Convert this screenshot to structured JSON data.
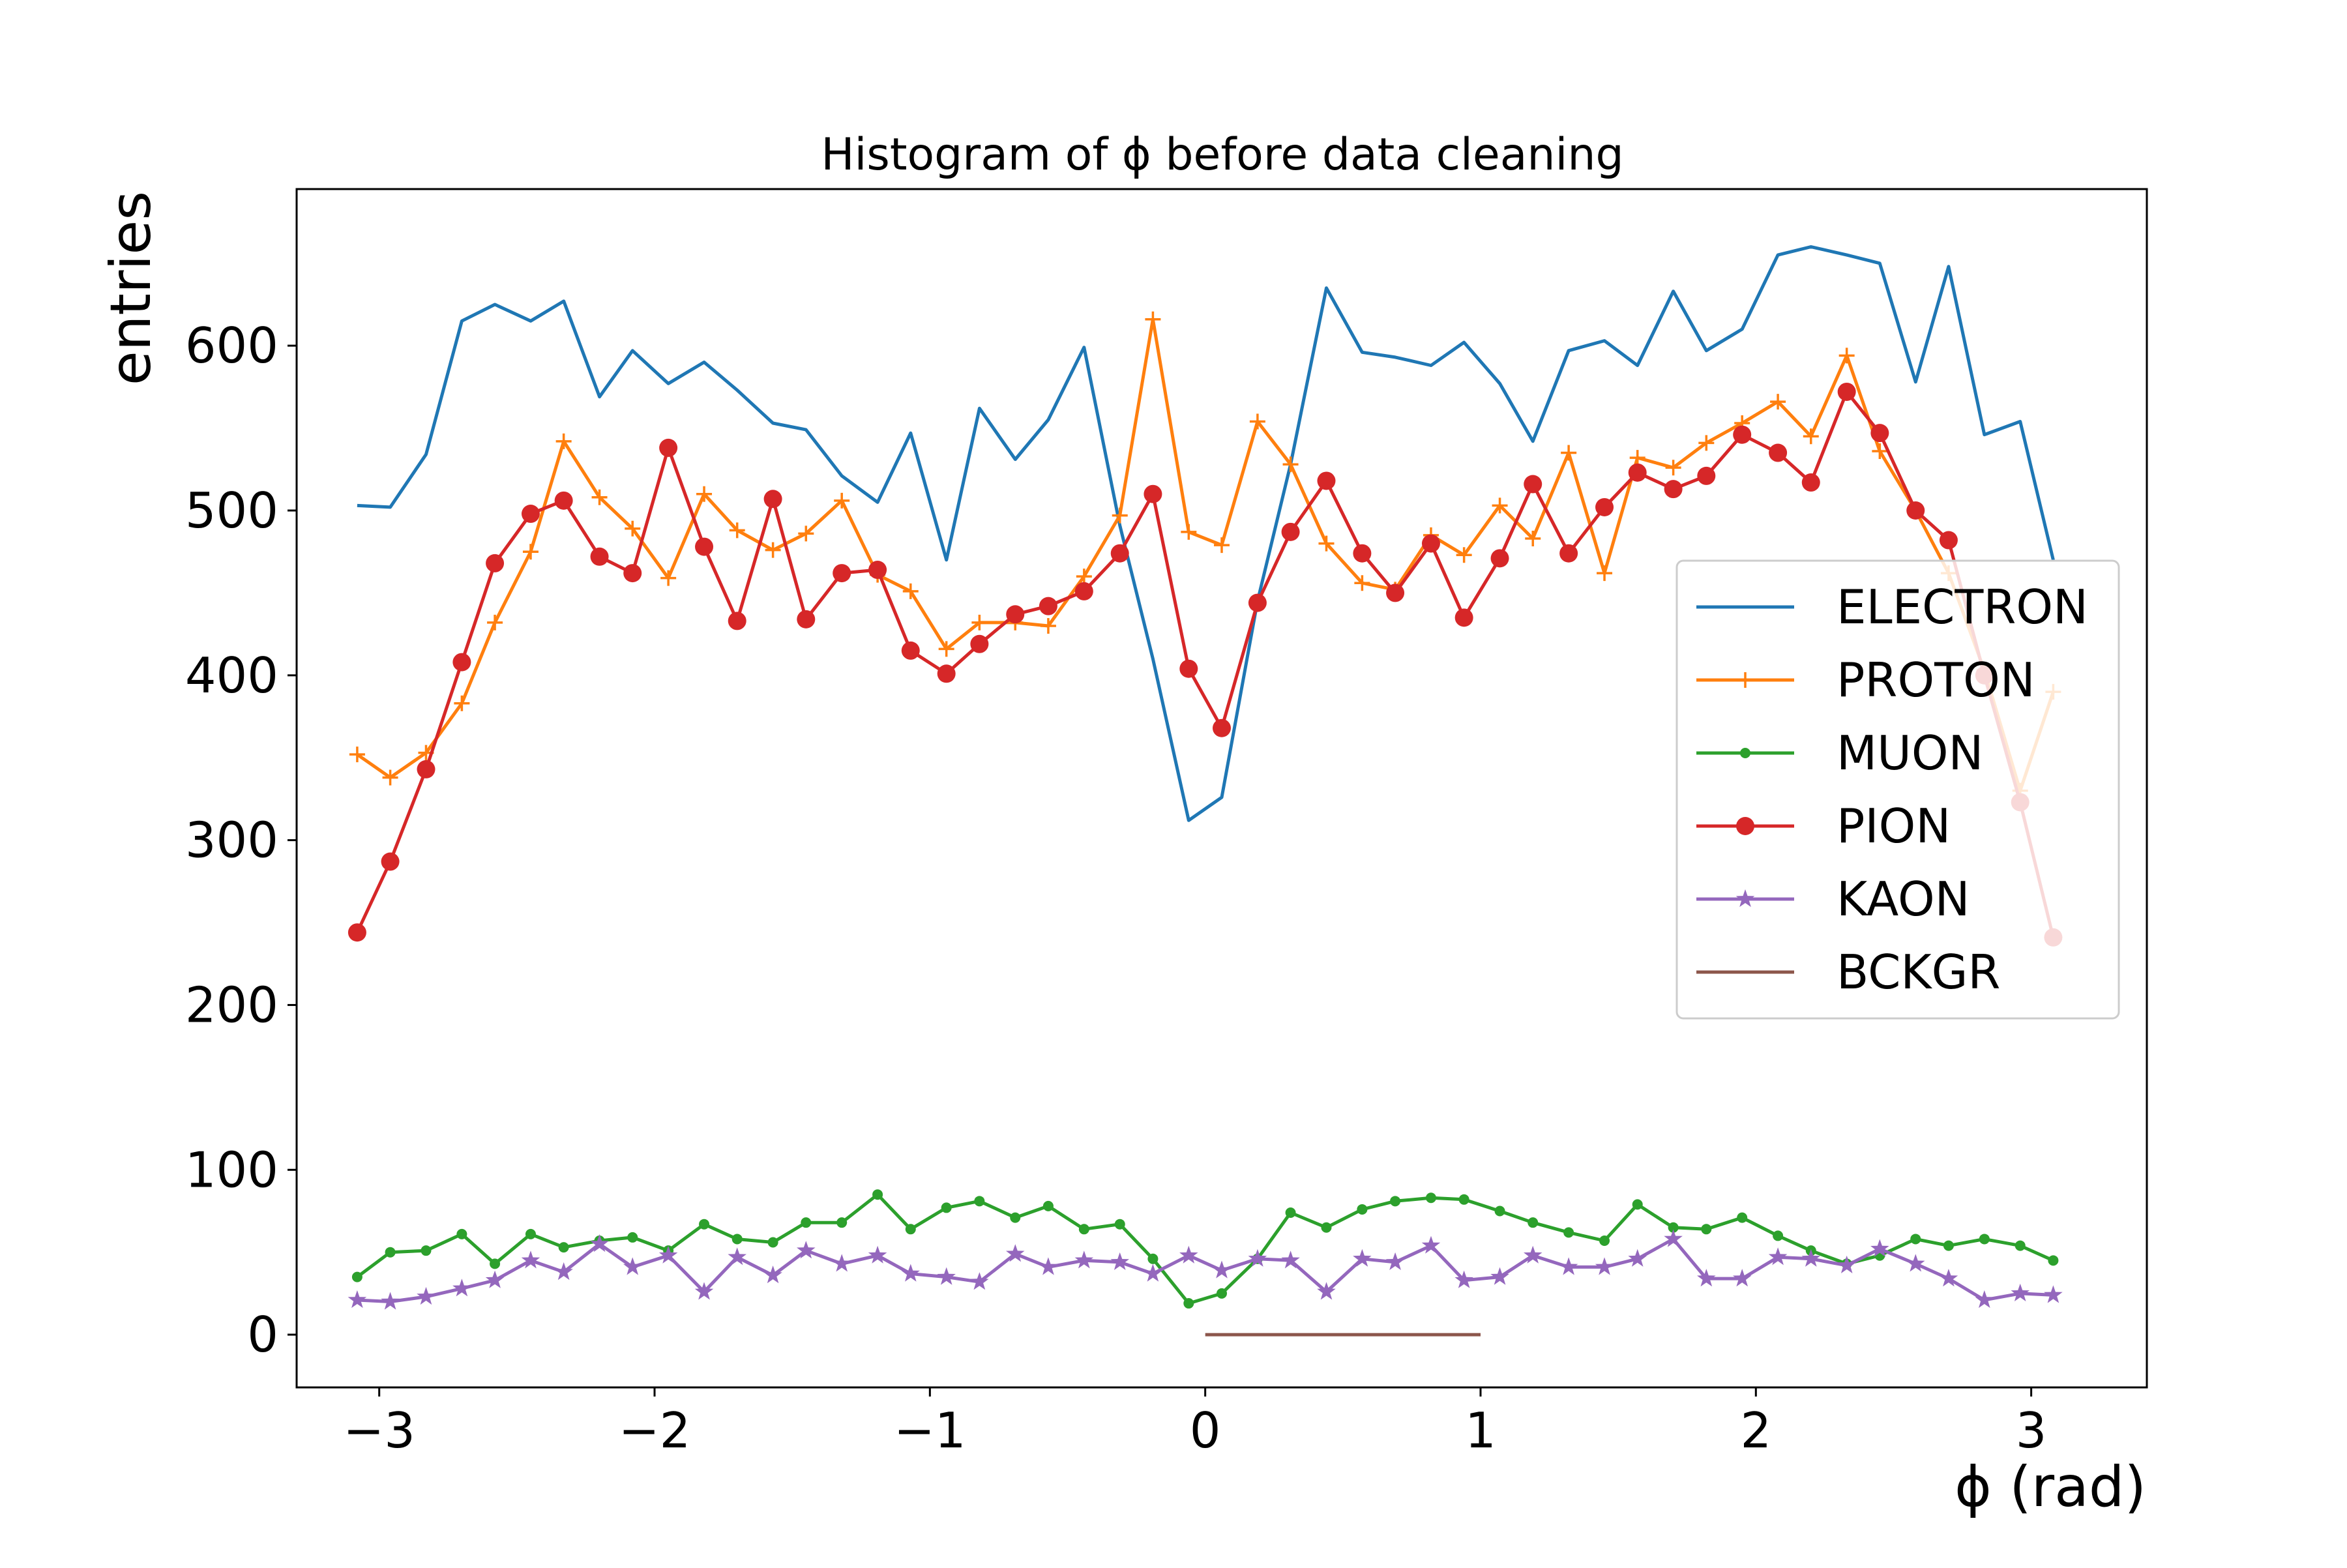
{
  "chart_data": {
    "type": "line",
    "title": "Histogram of ϕ before data cleaning",
    "xlabel": "ϕ (rad)",
    "ylabel": "entries",
    "xlim": [
      -3.3,
      3.42
    ],
    "ylim": [
      -32,
      695
    ],
    "grid": false,
    "legend_position": "right",
    "x_ticks": [
      -3,
      -2,
      -1,
      0,
      1,
      2,
      3
    ],
    "x_tick_labels": [
      "−3",
      "−2",
      "−1",
      "0",
      "1",
      "2",
      "3"
    ],
    "y_ticks": [
      0,
      100,
      200,
      300,
      400,
      500,
      600
    ],
    "y_tick_labels": [
      "0",
      "100",
      "200",
      "300",
      "400",
      "500",
      "600"
    ],
    "x": [
      -3.08,
      -2.96,
      -2.83,
      -2.7,
      -2.58,
      -2.45,
      -2.33,
      -2.2,
      -2.08,
      -1.95,
      -1.82,
      -1.7,
      -1.57,
      -1.45,
      -1.32,
      -1.19,
      -1.07,
      -0.94,
      -0.82,
      -0.69,
      -0.57,
      -0.44,
      -0.31,
      -0.19,
      -0.06,
      0.06,
      0.19,
      0.31,
      0.44,
      0.57,
      0.69,
      0.82,
      0.94,
      1.07,
      1.19,
      1.32,
      1.45,
      1.57,
      1.7,
      1.82,
      1.95,
      2.08,
      2.2,
      2.33,
      2.45,
      2.58,
      2.7,
      2.83,
      2.96,
      3.08
    ],
    "series": [
      {
        "name": "ELECTRON",
        "color": "#1f77b4",
        "marker": "none",
        "values": [
          503,
          502,
          534,
          615,
          625,
          615,
          627,
          569,
          597,
          577,
          590,
          573,
          553,
          549,
          521,
          505,
          547,
          470,
          562,
          531,
          555,
          599,
          491,
          410,
          312,
          326,
          445,
          528,
          635,
          596,
          593,
          588,
          602,
          577,
          542,
          597,
          603,
          588,
          633,
          597,
          610,
          655,
          660,
          655,
          650,
          578,
          648,
          546,
          554,
          470
        ]
      },
      {
        "name": "PROTON",
        "color": "#ff7f0e",
        "marker": "plus",
        "values": [
          352,
          338,
          353,
          383,
          432,
          475,
          542,
          508,
          489,
          459,
          510,
          488,
          476,
          486,
          506,
          461,
          451,
          416,
          432,
          432,
          430,
          460,
          497,
          616,
          487,
          479,
          554,
          528,
          480,
          456,
          452,
          485,
          473,
          503,
          483,
          535,
          462,
          532,
          526,
          541,
          553,
          566,
          545,
          594,
          536,
          500,
          462,
          403,
          330,
          390
        ]
      },
      {
        "name": "MUON",
        "color": "#2ca02c",
        "marker": "dot",
        "values": [
          35,
          50,
          51,
          61,
          43,
          61,
          53,
          57,
          59,
          51,
          67,
          58,
          56,
          68,
          68,
          85,
          64,
          77,
          81,
          71,
          78,
          64,
          67,
          46,
          19,
          25,
          46,
          74,
          65,
          76,
          81,
          83,
          82,
          75,
          68,
          62,
          57,
          79,
          65,
          64,
          71,
          60,
          51,
          43,
          48,
          58,
          54,
          58,
          54,
          45
        ]
      },
      {
        "name": "PION",
        "color": "#d62728",
        "marker": "circle",
        "values": [
          244,
          287,
          343,
          408,
          468,
          498,
          506,
          472,
          462,
          538,
          478,
          433,
          507,
          434,
          462,
          464,
          415,
          401,
          419,
          437,
          442,
          451,
          474,
          510,
          404,
          368,
          444,
          487,
          518,
          474,
          450,
          480,
          435,
          471,
          516,
          474,
          502,
          523,
          513,
          521,
          546,
          535,
          517,
          572,
          547,
          500,
          482,
          400,
          323,
          241
        ]
      },
      {
        "name": "KAON",
        "color": "#9467bd",
        "marker": "star",
        "values": [
          21,
          20,
          23,
          28,
          33,
          45,
          38,
          55,
          41,
          48,
          26,
          47,
          36,
          51,
          43,
          48,
          37,
          35,
          32,
          49,
          41,
          45,
          44,
          37,
          48,
          39,
          46,
          45,
          26,
          46,
          44,
          54,
          33,
          35,
          48,
          41,
          41,
          46,
          58,
          34,
          34,
          47,
          46,
          42,
          52,
          43,
          34,
          21,
          25,
          24
        ]
      },
      {
        "name": "BCKGR",
        "color": "#8c564b",
        "marker": "none",
        "x": [
          0.0,
          1.0
        ],
        "values": [
          0,
          0
        ]
      }
    ]
  }
}
